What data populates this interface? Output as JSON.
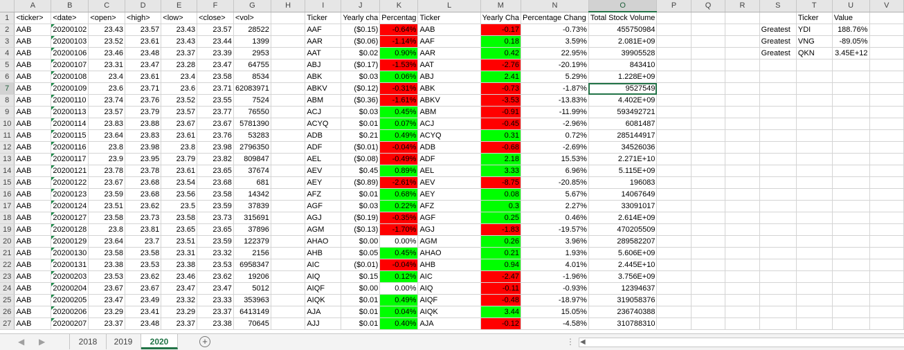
{
  "columns": [
    "A",
    "B",
    "C",
    "D",
    "E",
    "F",
    "G",
    "H",
    "I",
    "J",
    "K",
    "L",
    "M",
    "N",
    "O",
    "P",
    "Q",
    "R",
    "S",
    "T",
    "U",
    "V"
  ],
  "selected_column": "O",
  "selected_row": 7,
  "headers": {
    "A": "<ticker>",
    "B": "<date>",
    "C": "<open>",
    "D": "<high>",
    "E": "<low>",
    "F": "<close>",
    "G": "<vol>",
    "I": "Ticker",
    "J": "Yearly cha",
    "K": "Percentag",
    "L": "Ticker",
    "M": "Yearly Cha",
    "N": "Percentage Chang",
    "O": "Total Stock Volume",
    "T": "Ticker",
    "U": "Value"
  },
  "data_rows": [
    {
      "n": "2",
      "a": "AAB",
      "b": "20200102",
      "c": "23.43",
      "d": "23.57",
      "e": "23.43",
      "f": "23.57",
      "g": "28522",
      "i": "AAF",
      "j": "($0.15)",
      "k": "-0.64%",
      "kc": "red",
      "l": "AAB",
      "m": "-0.17",
      "mc": "red",
      "nn": "-0.73%",
      "o": "455750984",
      "s": "Greatest",
      "t": "YDI",
      "u": "188.76%"
    },
    {
      "n": "3",
      "a": "AAB",
      "b": "20200103",
      "c": "23.52",
      "d": "23.61",
      "e": "23.43",
      "f": "23.44",
      "g": "1399",
      "i": "AAR",
      "j": "($0.06)",
      "k": "-1.14%",
      "kc": "red",
      "l": "AAF",
      "m": "0.18",
      "mc": "green",
      "nn": "3.59%",
      "o": "2.081E+09",
      "s": "Greatest",
      "t": "VNG",
      "u": "-89.05%"
    },
    {
      "n": "4",
      "a": "AAB",
      "b": "20200106",
      "c": "23.46",
      "d": "23.48",
      "e": "23.37",
      "f": "23.39",
      "g": "2953",
      "i": "AAT",
      "j": "$0.02",
      "k": "0.90%",
      "kc": "green",
      "l": "AAR",
      "m": "0.42",
      "mc": "green",
      "nn": "22.95%",
      "o": "39905528",
      "s": "Greatest",
      "t": "QKN",
      "u": "3.45E+12"
    },
    {
      "n": "5",
      "a": "AAB",
      "b": "20200107",
      "c": "23.31",
      "d": "23.47",
      "e": "23.28",
      "f": "23.47",
      "g": "64755",
      "i": "ABJ",
      "j": "($0.17)",
      "k": "-1.53%",
      "kc": "red",
      "l": "AAT",
      "m": "-2.76",
      "mc": "red",
      "nn": "-20.19%",
      "o": "843410",
      "s": "",
      "t": "",
      "u": ""
    },
    {
      "n": "6",
      "a": "AAB",
      "b": "20200108",
      "c": "23.4",
      "d": "23.61",
      "e": "23.4",
      "f": "23.58",
      "g": "8534",
      "i": "ABK",
      "j": "$0.03",
      "k": "0.06%",
      "kc": "green",
      "l": "ABJ",
      "m": "2.41",
      "mc": "green",
      "nn": "5.29%",
      "o": "1.228E+09",
      "s": "",
      "t": "",
      "u": ""
    },
    {
      "n": "7",
      "a": "AAB",
      "b": "20200109",
      "c": "23.6",
      "d": "23.71",
      "e": "23.6",
      "f": "23.71",
      "g": "62083971",
      "i": "ABKV",
      "j": "($0.12)",
      "k": "-0.31%",
      "kc": "red",
      "l": "ABK",
      "m": "-0.73",
      "mc": "red",
      "nn": "-1.87%",
      "o": "9527549",
      "s": "",
      "t": "",
      "u": ""
    },
    {
      "n": "8",
      "a": "AAB",
      "b": "20200110",
      "c": "23.74",
      "d": "23.76",
      "e": "23.52",
      "f": "23.55",
      "g": "7524",
      "i": "ABM",
      "j": "($0.36)",
      "k": "-1.61%",
      "kc": "red",
      "l": "ABKV",
      "m": "-3.53",
      "mc": "red",
      "nn": "-13.83%",
      "o": "4.402E+09",
      "s": "",
      "t": "",
      "u": ""
    },
    {
      "n": "9",
      "a": "AAB",
      "b": "20200113",
      "c": "23.57",
      "d": "23.79",
      "e": "23.57",
      "f": "23.77",
      "g": "76550",
      "i": "ACJ",
      "j": "$0.03",
      "k": "0.45%",
      "kc": "green",
      "l": "ABM",
      "m": "-0.91",
      "mc": "red",
      "nn": "-11.99%",
      "o": "593492721",
      "s": "",
      "t": "",
      "u": ""
    },
    {
      "n": "10",
      "a": "AAB",
      "b": "20200114",
      "c": "23.83",
      "d": "23.88",
      "e": "23.67",
      "f": "23.67",
      "g": "5781390",
      "i": "ACYQ",
      "j": "$0.01",
      "k": "0.07%",
      "kc": "green",
      "l": "ACJ",
      "m": "-0.45",
      "mc": "red",
      "nn": "-2.96%",
      "o": "6081487",
      "s": "",
      "t": "",
      "u": ""
    },
    {
      "n": "11",
      "a": "AAB",
      "b": "20200115",
      "c": "23.64",
      "d": "23.83",
      "e": "23.61",
      "f": "23.76",
      "g": "53283",
      "i": "ADB",
      "j": "$0.21",
      "k": "0.49%",
      "kc": "green",
      "l": "ACYQ",
      "m": "0.31",
      "mc": "green",
      "nn": "0.72%",
      "o": "285144917",
      "s": "",
      "t": "",
      "u": ""
    },
    {
      "n": "12",
      "a": "AAB",
      "b": "20200116",
      "c": "23.8",
      "d": "23.98",
      "e": "23.8",
      "f": "23.98",
      "g": "2796350",
      "i": "ADF",
      "j": "($0.01)",
      "k": "-0.04%",
      "kc": "red",
      "l": "ADB",
      "m": "-0.68",
      "mc": "red",
      "nn": "-2.69%",
      "o": "34526036",
      "s": "",
      "t": "",
      "u": ""
    },
    {
      "n": "13",
      "a": "AAB",
      "b": "20200117",
      "c": "23.9",
      "d": "23.95",
      "e": "23.79",
      "f": "23.82",
      "g": "809847",
      "i": "AEL",
      "j": "($0.08)",
      "k": "-0.49%",
      "kc": "red",
      "l": "ADF",
      "m": "2.18",
      "mc": "green",
      "nn": "15.53%",
      "o": "2.271E+10",
      "s": "",
      "t": "",
      "u": ""
    },
    {
      "n": "14",
      "a": "AAB",
      "b": "20200121",
      "c": "23.78",
      "d": "23.78",
      "e": "23.61",
      "f": "23.65",
      "g": "37674",
      "i": "AEV",
      "j": "$0.45",
      "k": "0.89%",
      "kc": "green",
      "l": "AEL",
      "m": "3.33",
      "mc": "green",
      "nn": "6.96%",
      "o": "5.115E+09",
      "s": "",
      "t": "",
      "u": ""
    },
    {
      "n": "15",
      "a": "AAB",
      "b": "20200122",
      "c": "23.67",
      "d": "23.68",
      "e": "23.54",
      "f": "23.68",
      "g": "681",
      "i": "AEY",
      "j": "($0.89)",
      "k": "-2.61%",
      "kc": "red",
      "l": "AEV",
      "m": "-8.75",
      "mc": "red",
      "nn": "-20.85%",
      "o": "196083",
      "s": "",
      "t": "",
      "u": ""
    },
    {
      "n": "16",
      "a": "AAB",
      "b": "20200123",
      "c": "23.59",
      "d": "23.68",
      "e": "23.56",
      "f": "23.58",
      "g": "14342",
      "i": "AFZ",
      "j": "$0.01",
      "k": "0.68%",
      "kc": "green",
      "l": "AEY",
      "m": "0.08",
      "mc": "green",
      "nn": "5.67%",
      "o": "14067649",
      "s": "",
      "t": "",
      "u": ""
    },
    {
      "n": "17",
      "a": "AAB",
      "b": "20200124",
      "c": "23.51",
      "d": "23.62",
      "e": "23.5",
      "f": "23.59",
      "g": "37839",
      "i": "AGF",
      "j": "$0.03",
      "k": "0.22%",
      "kc": "green",
      "l": "AFZ",
      "m": "0.3",
      "mc": "green",
      "nn": "2.27%",
      "o": "33091017",
      "s": "",
      "t": "",
      "u": ""
    },
    {
      "n": "18",
      "a": "AAB",
      "b": "20200127",
      "c": "23.58",
      "d": "23.73",
      "e": "23.58",
      "f": "23.73",
      "g": "315691",
      "i": "AGJ",
      "j": "($0.19)",
      "k": "-0.35%",
      "kc": "red",
      "l": "AGF",
      "m": "0.25",
      "mc": "green",
      "nn": "0.46%",
      "o": "2.614E+09",
      "s": "",
      "t": "",
      "u": ""
    },
    {
      "n": "19",
      "a": "AAB",
      "b": "20200128",
      "c": "23.8",
      "d": "23.81",
      "e": "23.65",
      "f": "23.65",
      "g": "37896",
      "i": "AGM",
      "j": "($0.13)",
      "k": "-1.70%",
      "kc": "red",
      "l": "AGJ",
      "m": "-1.83",
      "mc": "red",
      "nn": "-19.57%",
      "o": "470205509",
      "s": "",
      "t": "",
      "u": ""
    },
    {
      "n": "20",
      "a": "AAB",
      "b": "20200129",
      "c": "23.64",
      "d": "23.7",
      "e": "23.51",
      "f": "23.59",
      "g": "122379",
      "i": "AHAO",
      "j": "$0.00",
      "k": "0.00%",
      "kc": "",
      "l": "AGM",
      "m": "0.26",
      "mc": "green",
      "nn": "3.96%",
      "o": "289582207",
      "s": "",
      "t": "",
      "u": ""
    },
    {
      "n": "21",
      "a": "AAB",
      "b": "20200130",
      "c": "23.58",
      "d": "23.58",
      "e": "23.31",
      "f": "23.32",
      "g": "2156",
      "i": "AHB",
      "j": "$0.05",
      "k": "0.45%",
      "kc": "green",
      "l": "AHAO",
      "m": "0.21",
      "mc": "green",
      "nn": "1.93%",
      "o": "5.606E+09",
      "s": "",
      "t": "",
      "u": ""
    },
    {
      "n": "22",
      "a": "AAB",
      "b": "20200131",
      "c": "23.38",
      "d": "23.53",
      "e": "23.38",
      "f": "23.53",
      "g": "6958347",
      "i": "AIC",
      "j": "($0.01)",
      "k": "-0.04%",
      "kc": "red",
      "l": "AHB",
      "m": "0.94",
      "mc": "green",
      "nn": "4.01%",
      "o": "2.445E+10",
      "s": "",
      "t": "",
      "u": ""
    },
    {
      "n": "23",
      "a": "AAB",
      "b": "20200203",
      "c": "23.53",
      "d": "23.62",
      "e": "23.46",
      "f": "23.62",
      "g": "19206",
      "i": "AIQ",
      "j": "$0.15",
      "k": "0.12%",
      "kc": "green",
      "l": "AIC",
      "m": "-2.47",
      "mc": "red",
      "nn": "-1.96%",
      "o": "3.756E+09",
      "s": "",
      "t": "",
      "u": ""
    },
    {
      "n": "24",
      "a": "AAB",
      "b": "20200204",
      "c": "23.67",
      "d": "23.67",
      "e": "23.47",
      "f": "23.47",
      "g": "5012",
      "i": "AIQF",
      "j": "$0.00",
      "k": "0.00%",
      "kc": "",
      "l": "AIQ",
      "m": "-0.11",
      "mc": "red",
      "nn": "-0.93%",
      "o": "12394637",
      "s": "",
      "t": "",
      "u": ""
    },
    {
      "n": "25",
      "a": "AAB",
      "b": "20200205",
      "c": "23.47",
      "d": "23.49",
      "e": "23.32",
      "f": "23.33",
      "g": "353963",
      "i": "AIQK",
      "j": "$0.01",
      "k": "0.49%",
      "kc": "green",
      "l": "AIQF",
      "m": "-0.48",
      "mc": "red",
      "nn": "-18.97%",
      "o": "319058376",
      "s": "",
      "t": "",
      "u": ""
    },
    {
      "n": "26",
      "a": "AAB",
      "b": "20200206",
      "c": "23.29",
      "d": "23.41",
      "e": "23.29",
      "f": "23.37",
      "g": "6413149",
      "i": "AJA",
      "j": "$0.01",
      "k": "0.04%",
      "kc": "green",
      "l": "AIQK",
      "m": "3.44",
      "mc": "green",
      "nn": "15.05%",
      "o": "236740388",
      "s": "",
      "t": "",
      "u": ""
    },
    {
      "n": "27",
      "a": "AAB",
      "b": "20200207",
      "c": "23.37",
      "d": "23.48",
      "e": "23.37",
      "f": "23.38",
      "g": "70645",
      "i": "AJJ",
      "j": "$0.01",
      "k": "0.40%",
      "kc": "green",
      "l": "AJA",
      "m": "-0.12",
      "mc": "red",
      "nn": "-4.58%",
      "o": "310788310",
      "s": "",
      "t": "",
      "u": ""
    }
  ],
  "sheet_tabs": [
    "2018",
    "2019",
    "2020"
  ],
  "active_tab": "2020",
  "nav": {
    "prev": "◀",
    "next": "▶",
    "add": "+",
    "ellipsis": "⋮"
  }
}
